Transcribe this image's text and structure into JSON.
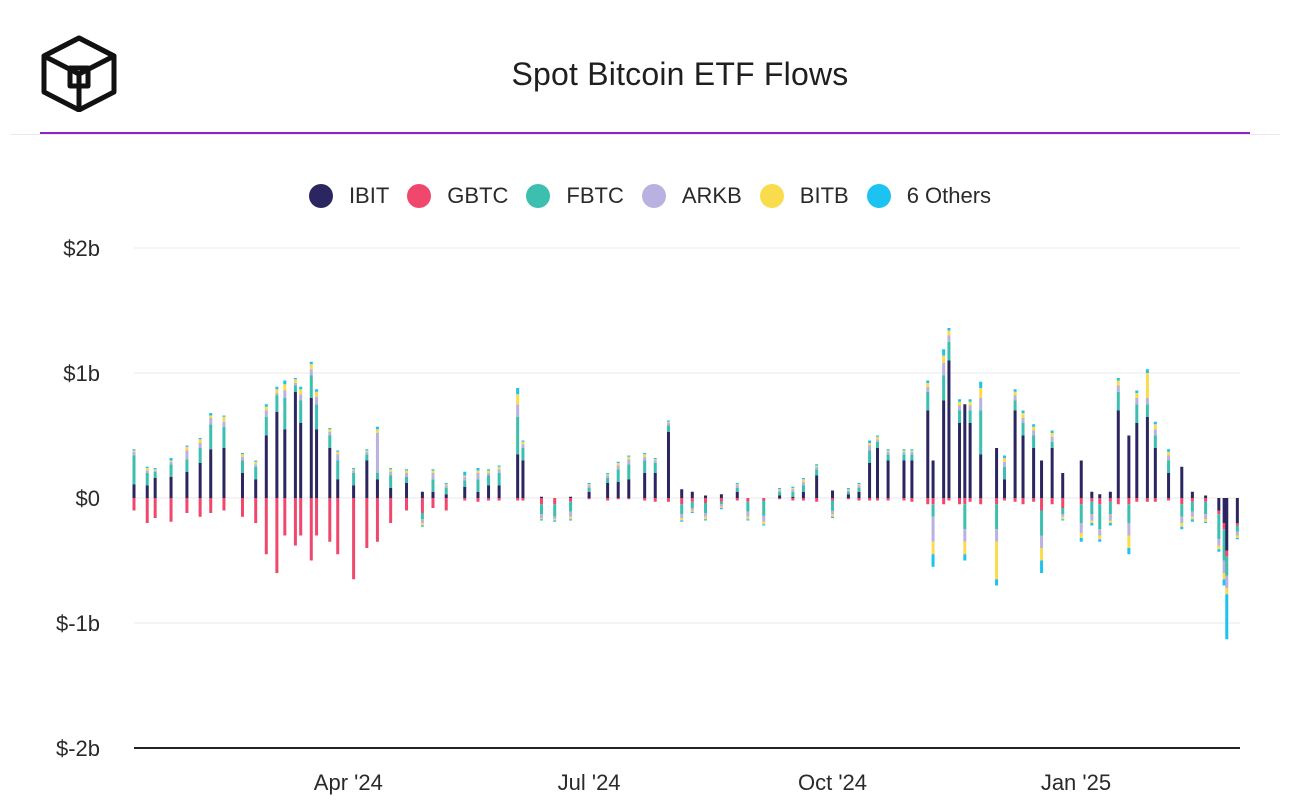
{
  "header": {
    "title": "Spot Bitcoin ETF Flows"
  },
  "colors": {
    "accent": "#8e24c8",
    "IBIT": "#2b2560",
    "GBTC": "#f0476c",
    "FBTC": "#3cbfae",
    "ARKB": "#b9b1e0",
    "BITB": "#f8dc4c",
    "Others": "#1cc3f0"
  },
  "legend": [
    {
      "label": "IBIT",
      "color": "#2b2560"
    },
    {
      "label": "GBTC",
      "color": "#f0476c"
    },
    {
      "label": "FBTC",
      "color": "#3cbfae"
    },
    {
      "label": "ARKB",
      "color": "#b9b1e0"
    },
    {
      "label": "BITB",
      "color": "#f8dc4c"
    },
    {
      "label": "6 Others",
      "color": "#1cc3f0"
    }
  ],
  "chart_data": {
    "type": "bar",
    "stacked": true,
    "title": "Spot Bitcoin ETF Flows",
    "ylim": [
      -2,
      2
    ],
    "yunit": "billion USD",
    "y_ticks": [
      {
        "value": 2,
        "label": "$2b"
      },
      {
        "value": 1,
        "label": "$1b"
      },
      {
        "value": 0,
        "label": "$0"
      },
      {
        "value": -1,
        "label": "$-1b"
      },
      {
        "value": -2,
        "label": "$-2b"
      }
    ],
    "xlim": [
      "2024-01-11",
      "2025-03-04"
    ],
    "x_ticks": [
      {
        "date": "2024-04-01",
        "label": "Apr '24"
      },
      {
        "date": "2024-07-01",
        "label": "Jul '24"
      },
      {
        "date": "2024-10-01",
        "label": "Oct '24"
      },
      {
        "date": "2025-01-01",
        "label": "Jan '25"
      }
    ],
    "series_names": [
      "IBIT",
      "GBTC",
      "FBTC",
      "ARKB",
      "BITB",
      "6 Others"
    ],
    "grid": true,
    "legend_position": "top",
    "points": [
      {
        "date": "2024-01-11",
        "IBIT": 0.11,
        "GBTC": -0.1,
        "FBTC": 0.23,
        "ARKB": 0.03,
        "BITB": 0.01,
        "Others": 0.01
      },
      {
        "date": "2024-01-16",
        "IBIT": 0.1,
        "GBTC": -0.2,
        "FBTC": 0.1,
        "ARKB": 0.02,
        "BITB": 0.02,
        "Others": 0.01
      },
      {
        "date": "2024-01-19",
        "IBIT": 0.16,
        "GBTC": -0.16,
        "FBTC": 0.05,
        "ARKB": 0.01,
        "BITB": 0.01,
        "Others": 0.01
      },
      {
        "date": "2024-01-25",
        "IBIT": 0.17,
        "GBTC": -0.19,
        "FBTC": 0.1,
        "ARKB": 0.02,
        "BITB": 0.01,
        "Others": 0.02
      },
      {
        "date": "2024-01-31",
        "IBIT": 0.21,
        "GBTC": -0.12,
        "FBTC": 0.1,
        "ARKB": 0.07,
        "BITB": 0.03,
        "Others": 0.01
      },
      {
        "date": "2024-02-05",
        "IBIT": 0.28,
        "GBTC": -0.15,
        "FBTC": 0.12,
        "ARKB": 0.04,
        "BITB": 0.03,
        "Others": 0.01
      },
      {
        "date": "2024-02-09",
        "IBIT": 0.39,
        "GBTC": -0.12,
        "FBTC": 0.2,
        "ARKB": 0.05,
        "BITB": 0.02,
        "Others": 0.02
      },
      {
        "date": "2024-02-14",
        "IBIT": 0.4,
        "GBTC": -0.1,
        "FBTC": 0.17,
        "ARKB": 0.04,
        "BITB": 0.04,
        "Others": 0.01
      },
      {
        "date": "2024-02-21",
        "IBIT": 0.2,
        "GBTC": -0.15,
        "FBTC": 0.1,
        "ARKB": 0.03,
        "BITB": 0.02,
        "Others": 0.01
      },
      {
        "date": "2024-02-26",
        "IBIT": 0.15,
        "GBTC": -0.2,
        "FBTC": 0.1,
        "ARKB": 0.02,
        "BITB": 0.02,
        "Others": 0.01
      },
      {
        "date": "2024-03-01",
        "IBIT": 0.5,
        "GBTC": -0.45,
        "FBTC": 0.15,
        "ARKB": 0.05,
        "BITB": 0.03,
        "Others": 0.02
      },
      {
        "date": "2024-03-05",
        "IBIT": 0.69,
        "GBTC": -0.6,
        "FBTC": 0.13,
        "ARKB": 0.02,
        "BITB": 0.03,
        "Others": 0.02
      },
      {
        "date": "2024-03-08",
        "IBIT": 0.55,
        "GBTC": -0.3,
        "FBTC": 0.25,
        "ARKB": 0.06,
        "BITB": 0.05,
        "Others": 0.03
      },
      {
        "date": "2024-03-12",
        "IBIT": 0.85,
        "GBTC": -0.38,
        "FBTC": 0.05,
        "ARKB": 0.02,
        "BITB": 0.03,
        "Others": 0.01
      },
      {
        "date": "2024-03-14",
        "IBIT": 0.6,
        "GBTC": -0.3,
        "FBTC": 0.18,
        "ARKB": 0.05,
        "BITB": 0.04,
        "Others": 0.02
      },
      {
        "date": "2024-03-18",
        "IBIT": 0.8,
        "GBTC": -0.5,
        "FBTC": 0.18,
        "ARKB": 0.05,
        "BITB": 0.04,
        "Others": 0.02
      },
      {
        "date": "2024-03-20",
        "IBIT": 0.55,
        "GBTC": -0.3,
        "FBTC": 0.2,
        "ARKB": 0.06,
        "BITB": 0.04,
        "Others": 0.02
      },
      {
        "date": "2024-03-25",
        "IBIT": 0.4,
        "GBTC": -0.35,
        "FBTC": 0.1,
        "ARKB": 0.03,
        "BITB": 0.02,
        "Others": 0.01
      },
      {
        "date": "2024-03-28",
        "IBIT": 0.15,
        "GBTC": -0.45,
        "FBTC": 0.15,
        "ARKB": 0.05,
        "BITB": 0.02,
        "Others": 0.01
      },
      {
        "date": "2024-04-03",
        "IBIT": 0.1,
        "GBTC": -0.65,
        "FBTC": 0.1,
        "ARKB": 0.02,
        "BITB": 0.01,
        "Others": 0.01
      },
      {
        "date": "2024-04-08",
        "IBIT": 0.3,
        "GBTC": -0.4,
        "FBTC": 0.05,
        "ARKB": 0.02,
        "BITB": 0.01,
        "Others": 0.01
      },
      {
        "date": "2024-04-12",
        "IBIT": 0.15,
        "GBTC": -0.35,
        "FBTC": 0.05,
        "ARKB": 0.32,
        "BITB": 0.03,
        "Others": 0.02
      },
      {
        "date": "2024-04-17",
        "IBIT": 0.08,
        "GBTC": -0.2,
        "FBTC": 0.1,
        "ARKB": 0.03,
        "BITB": 0.02,
        "Others": 0.01
      },
      {
        "date": "2024-04-23",
        "IBIT": 0.12,
        "GBTC": -0.1,
        "FBTC": 0.05,
        "ARKB": 0.03,
        "BITB": 0.02,
        "Others": 0.01
      },
      {
        "date": "2024-04-29",
        "IBIT": 0.05,
        "GBTC": -0.12,
        "FBTC": -0.05,
        "ARKB": -0.03,
        "BITB": -0.02,
        "Others": -0.01
      },
      {
        "date": "2024-05-03",
        "IBIT": 0.05,
        "GBTC": -0.08,
        "FBTC": 0.1,
        "ARKB": 0.05,
        "BITB": 0.02,
        "Others": 0.01
      },
      {
        "date": "2024-05-08",
        "IBIT": 0.03,
        "GBTC": -0.1,
        "FBTC": 0.05,
        "ARKB": 0.02,
        "BITB": 0.01,
        "Others": 0.01
      },
      {
        "date": "2024-05-15",
        "IBIT": 0.09,
        "GBTC": -0.02,
        "FBTC": 0.05,
        "ARKB": 0.03,
        "BITB": 0.01,
        "Others": 0.03
      },
      {
        "date": "2024-05-20",
        "IBIT": 0.05,
        "GBTC": -0.03,
        "FBTC": 0.1,
        "ARKB": 0.05,
        "BITB": 0.02,
        "Others": 0.02
      },
      {
        "date": "2024-05-24",
        "IBIT": 0.1,
        "GBTC": -0.02,
        "FBTC": 0.08,
        "ARKB": 0.02,
        "BITB": 0.02,
        "Others": 0.01
      },
      {
        "date": "2024-05-28",
        "IBIT": 0.1,
        "GBTC": -0.02,
        "FBTC": 0.1,
        "ARKB": 0.03,
        "BITB": 0.02,
        "Others": 0.01
      },
      {
        "date": "2024-06-04",
        "IBIT": 0.35,
        "GBTC": -0.02,
        "FBTC": 0.3,
        "ARKB": 0.1,
        "BITB": 0.08,
        "Others": 0.05
      },
      {
        "date": "2024-06-06",
        "IBIT": 0.3,
        "GBTC": -0.02,
        "FBTC": 0.1,
        "ARKB": 0.03,
        "BITB": 0.02,
        "Others": 0.01
      },
      {
        "date": "2024-06-13",
        "IBIT": 0.01,
        "GBTC": -0.05,
        "FBTC": -0.08,
        "ARKB": -0.03,
        "BITB": -0.01,
        "Others": -0.01
      },
      {
        "date": "2024-06-18",
        "IBIT": 0.0,
        "GBTC": -0.05,
        "FBTC": -0.1,
        "ARKB": -0.02,
        "BITB": -0.01,
        "Others": -0.01
      },
      {
        "date": "2024-06-24",
        "IBIT": 0.01,
        "GBTC": -0.03,
        "FBTC": -0.08,
        "ARKB": -0.04,
        "BITB": -0.02,
        "Others": -0.01
      },
      {
        "date": "2024-07-01",
        "IBIT": 0.05,
        "GBTC": -0.01,
        "FBTC": 0.03,
        "ARKB": 0.02,
        "BITB": 0.01,
        "Others": 0.01
      },
      {
        "date": "2024-07-08",
        "IBIT": 0.12,
        "GBTC": -0.02,
        "FBTC": 0.04,
        "ARKB": 0.02,
        "BITB": 0.01,
        "Others": 0.01
      },
      {
        "date": "2024-07-12",
        "IBIT": 0.13,
        "GBTC": -0.01,
        "FBTC": 0.1,
        "ARKB": 0.03,
        "BITB": 0.02,
        "Others": 0.01
      },
      {
        "date": "2024-07-16",
        "IBIT": 0.15,
        "GBTC": -0.01,
        "FBTC": 0.12,
        "ARKB": 0.04,
        "BITB": 0.02,
        "Others": 0.01
      },
      {
        "date": "2024-07-22",
        "IBIT": 0.2,
        "GBTC": -0.02,
        "FBTC": 0.1,
        "ARKB": 0.03,
        "BITB": 0.02,
        "Others": 0.01
      },
      {
        "date": "2024-07-26",
        "IBIT": 0.2,
        "GBTC": -0.03,
        "FBTC": 0.08,
        "ARKB": 0.02,
        "BITB": 0.01,
        "Others": 0.01
      },
      {
        "date": "2024-07-31",
        "IBIT": 0.53,
        "GBTC": -0.03,
        "FBTC": 0.05,
        "ARKB": 0.02,
        "BITB": 0.01,
        "Others": 0.01
      },
      {
        "date": "2024-08-05",
        "IBIT": 0.07,
        "GBTC": -0.05,
        "FBTC": -0.08,
        "ARKB": -0.03,
        "BITB": -0.02,
        "Others": -0.01
      },
      {
        "date": "2024-08-09",
        "IBIT": 0.05,
        "GBTC": -0.03,
        "FBTC": -0.05,
        "ARKB": -0.02,
        "BITB": -0.01,
        "Others": -0.01
      },
      {
        "date": "2024-08-14",
        "IBIT": 0.02,
        "GBTC": -0.04,
        "FBTC": -0.08,
        "ARKB": -0.03,
        "BITB": -0.02,
        "Others": -0.01
      },
      {
        "date": "2024-08-20",
        "IBIT": 0.03,
        "GBTC": -0.03,
        "FBTC": -0.02,
        "ARKB": -0.02,
        "BITB": -0.01,
        "Others": -0.01
      },
      {
        "date": "2024-08-26",
        "IBIT": 0.05,
        "GBTC": -0.02,
        "FBTC": 0.03,
        "ARKB": 0.02,
        "BITB": 0.01,
        "Others": 0.01
      },
      {
        "date": "2024-08-30",
        "IBIT": 0.0,
        "GBTC": -0.03,
        "FBTC": -0.08,
        "ARKB": -0.04,
        "BITB": -0.02,
        "Others": -0.01
      },
      {
        "date": "2024-09-05",
        "IBIT": 0.0,
        "GBTC": -0.02,
        "FBTC": -0.12,
        "ARKB": -0.05,
        "BITB": -0.02,
        "Others": -0.01
      },
      {
        "date": "2024-09-11",
        "IBIT": 0.02,
        "GBTC": -0.01,
        "FBTC": 0.03,
        "ARKB": 0.01,
        "BITB": 0.01,
        "Others": 0.01
      },
      {
        "date": "2024-09-16",
        "IBIT": 0.01,
        "GBTC": -0.02,
        "FBTC": 0.04,
        "ARKB": 0.02,
        "BITB": 0.01,
        "Others": 0.01
      },
      {
        "date": "2024-09-20",
        "IBIT": 0.05,
        "GBTC": -0.02,
        "FBTC": 0.05,
        "ARKB": 0.03,
        "BITB": 0.02,
        "Others": 0.01
      },
      {
        "date": "2024-09-25",
        "IBIT": 0.18,
        "GBTC": -0.03,
        "FBTC": 0.05,
        "ARKB": 0.02,
        "BITB": 0.01,
        "Others": 0.01
      },
      {
        "date": "2024-10-01",
        "IBIT": 0.06,
        "GBTC": -0.02,
        "FBTC": -0.08,
        "ARKB": -0.03,
        "BITB": -0.02,
        "Others": -0.01
      },
      {
        "date": "2024-10-07",
        "IBIT": 0.03,
        "GBTC": -0.01,
        "FBTC": 0.02,
        "ARKB": 0.01,
        "BITB": 0.01,
        "Others": 0.01
      },
      {
        "date": "2024-10-11",
        "IBIT": 0.05,
        "GBTC": -0.02,
        "FBTC": 0.03,
        "ARKB": 0.02,
        "BITB": 0.01,
        "Others": 0.01
      },
      {
        "date": "2024-10-15",
        "IBIT": 0.28,
        "GBTC": -0.02,
        "FBTC": 0.1,
        "ARKB": 0.04,
        "BITB": 0.02,
        "Others": 0.02
      },
      {
        "date": "2024-10-18",
        "IBIT": 0.4,
        "GBTC": -0.02,
        "FBTC": 0.05,
        "ARKB": 0.02,
        "BITB": 0.02,
        "Others": 0.01
      },
      {
        "date": "2024-10-22",
        "IBIT": 0.3,
        "GBTC": -0.02,
        "FBTC": 0.05,
        "ARKB": 0.02,
        "BITB": 0.01,
        "Others": 0.01
      },
      {
        "date": "2024-10-28",
        "IBIT": 0.3,
        "GBTC": -0.02,
        "FBTC": 0.05,
        "ARKB": 0.02,
        "BITB": 0.01,
        "Others": 0.01
      },
      {
        "date": "2024-10-31",
        "IBIT": 0.3,
        "GBTC": -0.03,
        "FBTC": 0.05,
        "ARKB": 0.02,
        "BITB": 0.01,
        "Others": 0.01
      },
      {
        "date": "2024-11-06",
        "IBIT": 0.7,
        "GBTC": -0.05,
        "FBTC": 0.15,
        "ARKB": 0.04,
        "BITB": 0.03,
        "Others": 0.02
      },
      {
        "date": "2024-11-08",
        "IBIT": 0.3,
        "GBTC": -0.05,
        "FBTC": -0.1,
        "ARKB": -0.2,
        "BITB": -0.1,
        "Others": -0.1
      },
      {
        "date": "2024-11-12",
        "IBIT": 0.78,
        "GBTC": -0.05,
        "FBTC": 0.2,
        "ARKB": 0.1,
        "BITB": 0.06,
        "Others": 0.05
      },
      {
        "date": "2024-11-14",
        "IBIT": 1.1,
        "GBTC": -0.02,
        "FBTC": 0.15,
        "ARKB": 0.05,
        "BITB": 0.04,
        "Others": 0.02
      },
      {
        "date": "2024-11-18",
        "IBIT": 0.6,
        "GBTC": -0.05,
        "FBTC": 0.1,
        "ARKB": 0.04,
        "BITB": 0.03,
        "Others": 0.02
      },
      {
        "date": "2024-11-20",
        "IBIT": 0.75,
        "GBTC": -0.05,
        "FBTC": -0.2,
        "ARKB": -0.1,
        "BITB": -0.1,
        "Others": -0.05
      },
      {
        "date": "2024-11-22",
        "IBIT": 0.6,
        "GBTC": -0.03,
        "FBTC": 0.1,
        "ARKB": 0.04,
        "BITB": 0.03,
        "Others": 0.02
      },
      {
        "date": "2024-11-26",
        "IBIT": 0.35,
        "GBTC": -0.05,
        "FBTC": 0.35,
        "ARKB": 0.1,
        "BITB": 0.08,
        "Others": 0.05
      },
      {
        "date": "2024-12-02",
        "IBIT": 0.4,
        "GBTC": -0.05,
        "FBTC": -0.2,
        "ARKB": -0.1,
        "BITB": -0.3,
        "Others": -0.05
      },
      {
        "date": "2024-12-05",
        "IBIT": 0.15,
        "GBTC": -0.02,
        "FBTC": 0.1,
        "ARKB": 0.04,
        "BITB": 0.03,
        "Others": 0.02
      },
      {
        "date": "2024-12-09",
        "IBIT": 0.7,
        "GBTC": -0.03,
        "FBTC": 0.08,
        "ARKB": 0.04,
        "BITB": 0.03,
        "Others": 0.02
      },
      {
        "date": "2024-12-12",
        "IBIT": 0.5,
        "GBTC": -0.05,
        "FBTC": 0.1,
        "ARKB": 0.04,
        "BITB": 0.04,
        "Others": 0.02
      },
      {
        "date": "2024-12-16",
        "IBIT": 0.4,
        "GBTC": -0.03,
        "FBTC": 0.1,
        "ARKB": 0.04,
        "BITB": 0.03,
        "Others": 0.02
      },
      {
        "date": "2024-12-19",
        "IBIT": 0.3,
        "GBTC": -0.1,
        "FBTC": -0.2,
        "ARKB": -0.1,
        "BITB": -0.1,
        "Others": -0.1
      },
      {
        "date": "2024-12-23",
        "IBIT": 0.4,
        "GBTC": -0.05,
        "FBTC": 0.05,
        "ARKB": 0.04,
        "BITB": 0.03,
        "Others": 0.02
      },
      {
        "date": "2024-12-27",
        "IBIT": 0.2,
        "GBTC": -0.08,
        "FBTC": -0.05,
        "ARKB": -0.02,
        "BITB": -0.02,
        "Others": -0.01
      },
      {
        "date": "2025-01-03",
        "IBIT": 0.3,
        "GBTC": -0.05,
        "FBTC": -0.15,
        "ARKB": -0.08,
        "BITB": -0.04,
        "Others": -0.03
      },
      {
        "date": "2025-01-07",
        "IBIT": 0.05,
        "GBTC": -0.03,
        "FBTC": -0.1,
        "ARKB": -0.05,
        "BITB": -0.02,
        "Others": -0.02
      },
      {
        "date": "2025-01-10",
        "IBIT": 0.03,
        "GBTC": -0.05,
        "FBTC": -0.2,
        "ARKB": -0.05,
        "BITB": -0.03,
        "Others": -0.02
      },
      {
        "date": "2025-01-14",
        "IBIT": 0.05,
        "GBTC": -0.03,
        "FBTC": -0.1,
        "ARKB": -0.05,
        "BITB": -0.02,
        "Others": -0.02
      },
      {
        "date": "2025-01-17",
        "IBIT": 0.7,
        "GBTC": -0.05,
        "FBTC": 0.15,
        "ARKB": 0.05,
        "BITB": 0.04,
        "Others": 0.02
      },
      {
        "date": "2025-01-21",
        "IBIT": 0.5,
        "GBTC": -0.05,
        "FBTC": -0.15,
        "ARKB": -0.1,
        "BITB": -0.1,
        "Others": -0.05
      },
      {
        "date": "2025-01-24",
        "IBIT": 0.6,
        "GBTC": -0.03,
        "FBTC": 0.15,
        "ARKB": 0.05,
        "BITB": 0.04,
        "Others": 0.02
      },
      {
        "date": "2025-01-28",
        "IBIT": 0.65,
        "GBTC": -0.03,
        "FBTC": 0.1,
        "ARKB": 0.05,
        "BITB": 0.2,
        "Others": 0.03
      },
      {
        "date": "2025-01-31",
        "IBIT": 0.4,
        "GBTC": -0.03,
        "FBTC": 0.1,
        "ARKB": 0.05,
        "BITB": 0.04,
        "Others": 0.02
      },
      {
        "date": "2025-02-05",
        "IBIT": 0.2,
        "GBTC": -0.02,
        "FBTC": 0.1,
        "ARKB": 0.04,
        "BITB": 0.03,
        "Others": 0.02
      },
      {
        "date": "2025-02-10",
        "IBIT": 0.25,
        "GBTC": -0.05,
        "FBTC": -0.1,
        "ARKB": -0.05,
        "BITB": -0.03,
        "Others": -0.02
      },
      {
        "date": "2025-02-14",
        "IBIT": 0.05,
        "GBTC": -0.03,
        "FBTC": -0.08,
        "ARKB": -0.04,
        "BITB": -0.02,
        "Others": -0.02
      },
      {
        "date": "2025-02-19",
        "IBIT": 0.02,
        "GBTC": -0.03,
        "FBTC": -0.1,
        "ARKB": -0.04,
        "BITB": -0.02,
        "Others": -0.01
      },
      {
        "date": "2025-02-24",
        "IBIT": -0.1,
        "GBTC": -0.03,
        "FBTC": -0.2,
        "ARKB": -0.05,
        "BITB": -0.03,
        "Others": -0.02
      },
      {
        "date": "2025-02-26",
        "IBIT": -0.2,
        "GBTC": -0.05,
        "FBTC": -0.25,
        "ARKB": -0.1,
        "BITB": -0.05,
        "Others": -0.05
      },
      {
        "date": "2025-02-27",
        "IBIT": -0.42,
        "GBTC": -0.05,
        "FBTC": -0.15,
        "ARKB": -0.1,
        "BITB": -0.05,
        "Others": -0.36
      },
      {
        "date": "2025-03-03",
        "IBIT": -0.2,
        "GBTC": -0.02,
        "FBTC": -0.05,
        "ARKB": -0.03,
        "BITB": -0.02,
        "Others": -0.01
      }
    ]
  }
}
